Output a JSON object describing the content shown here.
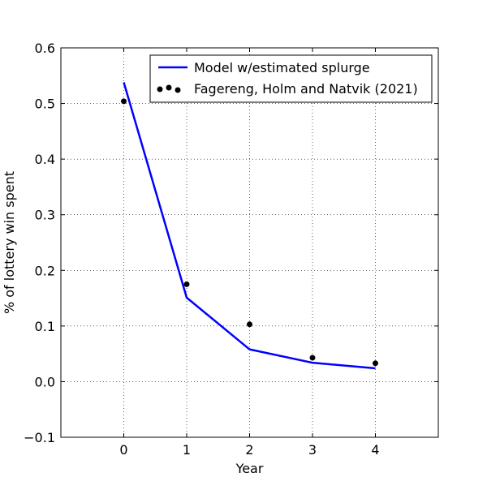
{
  "chart_data": {
    "type": "line",
    "title": "",
    "xlabel": "Year",
    "ylabel": "% of lottery win spent",
    "xlim": [
      -1,
      5
    ],
    "ylim": [
      -0.1,
      0.6
    ],
    "x_ticks": [
      0,
      1,
      2,
      3,
      4
    ],
    "x_tick_labels": [
      "0",
      "1",
      "2",
      "3",
      "4"
    ],
    "y_ticks": [
      -0.1,
      0.0,
      0.1,
      0.2,
      0.3,
      0.4,
      0.5,
      0.6
    ],
    "y_tick_labels": [
      "−0.1",
      "0.0",
      "0.1",
      "0.2",
      "0.3",
      "0.4",
      "0.5",
      "0.6"
    ],
    "grid": true,
    "legend_position": "top-right",
    "series": [
      {
        "name": "Model w/estimated splurge",
        "kind": "line",
        "color": "#0000ff",
        "x": [
          0,
          1,
          2,
          3,
          4
        ],
        "y": [
          0.538,
          0.151,
          0.058,
          0.034,
          0.024
        ]
      },
      {
        "name": "Fagereng, Holm and Natvik (2021)",
        "kind": "scatter",
        "color": "#000000",
        "x": [
          0,
          1,
          2,
          3,
          4
        ],
        "y": [
          0.504,
          0.175,
          0.103,
          0.043,
          0.033
        ]
      }
    ]
  }
}
